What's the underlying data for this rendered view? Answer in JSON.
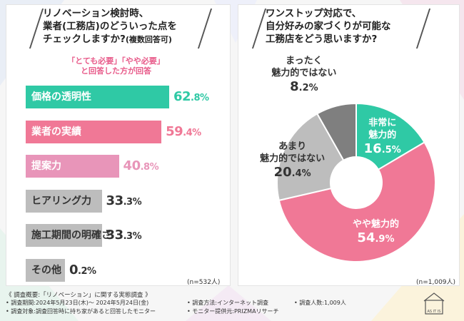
{
  "left_panel": {
    "title": "リノベーション検討時、\n業者(工務店)のどういった点を\nチェックしますか?",
    "title_suffix": "(複数回答可)",
    "note": "「とても必要」「やや必要」\nと回答した方が回答",
    "sample": "(n=532人)"
  },
  "right_panel": {
    "title": "ワンストップ対応で、\n自分好みの家づくりが可能な\n工務店をどう思いますか?",
    "sample": "(n=1,009人)"
  },
  "chart_data": [
    {
      "type": "bar",
      "orientation": "horizontal",
      "unit": "%",
      "categories": [
        "価格の透明性",
        "業者の実績",
        "提案力",
        "ヒアリング力",
        "施工期間の明確さ",
        "その他"
      ],
      "values": [
        62.8,
        59.4,
        40.8,
        33.3,
        33.3,
        0.2
      ],
      "value_labels": [
        [
          "62",
          ".8%"
        ],
        [
          "59",
          ".4%"
        ],
        [
          "40",
          ".8%"
        ],
        [
          "33",
          ".3%"
        ],
        [
          "33",
          ".3%"
        ],
        [
          "0",
          ".2%"
        ]
      ],
      "colors": [
        "#2fc9a5",
        "#f07896",
        "#e895b9",
        "#bdbdbd",
        "#bdbdbd",
        "#bdbdbd"
      ],
      "label_colors": [
        "#ffffff",
        "#ffffff",
        "#ffffff",
        "#333333",
        "#333333",
        "#333333"
      ],
      "value_colors": [
        "#2fc9a5",
        "#f07896",
        "#e895b9",
        "#333333",
        "#333333",
        "#333333"
      ]
    },
    {
      "type": "pie",
      "style": "donut",
      "unit": "%",
      "slices": [
        {
          "label": "非常に\n魅力的",
          "value": 16.5,
          "value_parts": [
            "16",
            ".5%"
          ],
          "color": "#2fc9a5",
          "text_color": "#ffffff"
        },
        {
          "label": "やや魅力的",
          "value": 54.9,
          "value_parts": [
            "54",
            ".9%"
          ],
          "color": "#f07896",
          "text_color": "#ffffff"
        },
        {
          "label": "あまり\n魅力的ではない",
          "value": 20.4,
          "value_parts": [
            "20",
            ".4%"
          ],
          "color": "#bdbdbd",
          "text_color": "#333333"
        },
        {
          "label": "まったく\n魅力的ではない",
          "value": 8.2,
          "value_parts": [
            "8",
            ".2%"
          ],
          "color": "#7f7f7f",
          "text_color": "#333333"
        }
      ]
    }
  ],
  "footer": {
    "title": "《 調査概要:「リノベーション」に関する実態調査 》",
    "items": [
      "• 調査期間:2024年5月23日(木)〜 2024年5月24日(金)",
      "• 調査方法:インターネット調査",
      "• 調査人数:1,009人",
      "• 調査対象:調査回答時に持ち家があると回答したモニター",
      "• モニター提供元:PRIZMAリサーチ"
    ],
    "logo_text": "AS IT IS"
  }
}
